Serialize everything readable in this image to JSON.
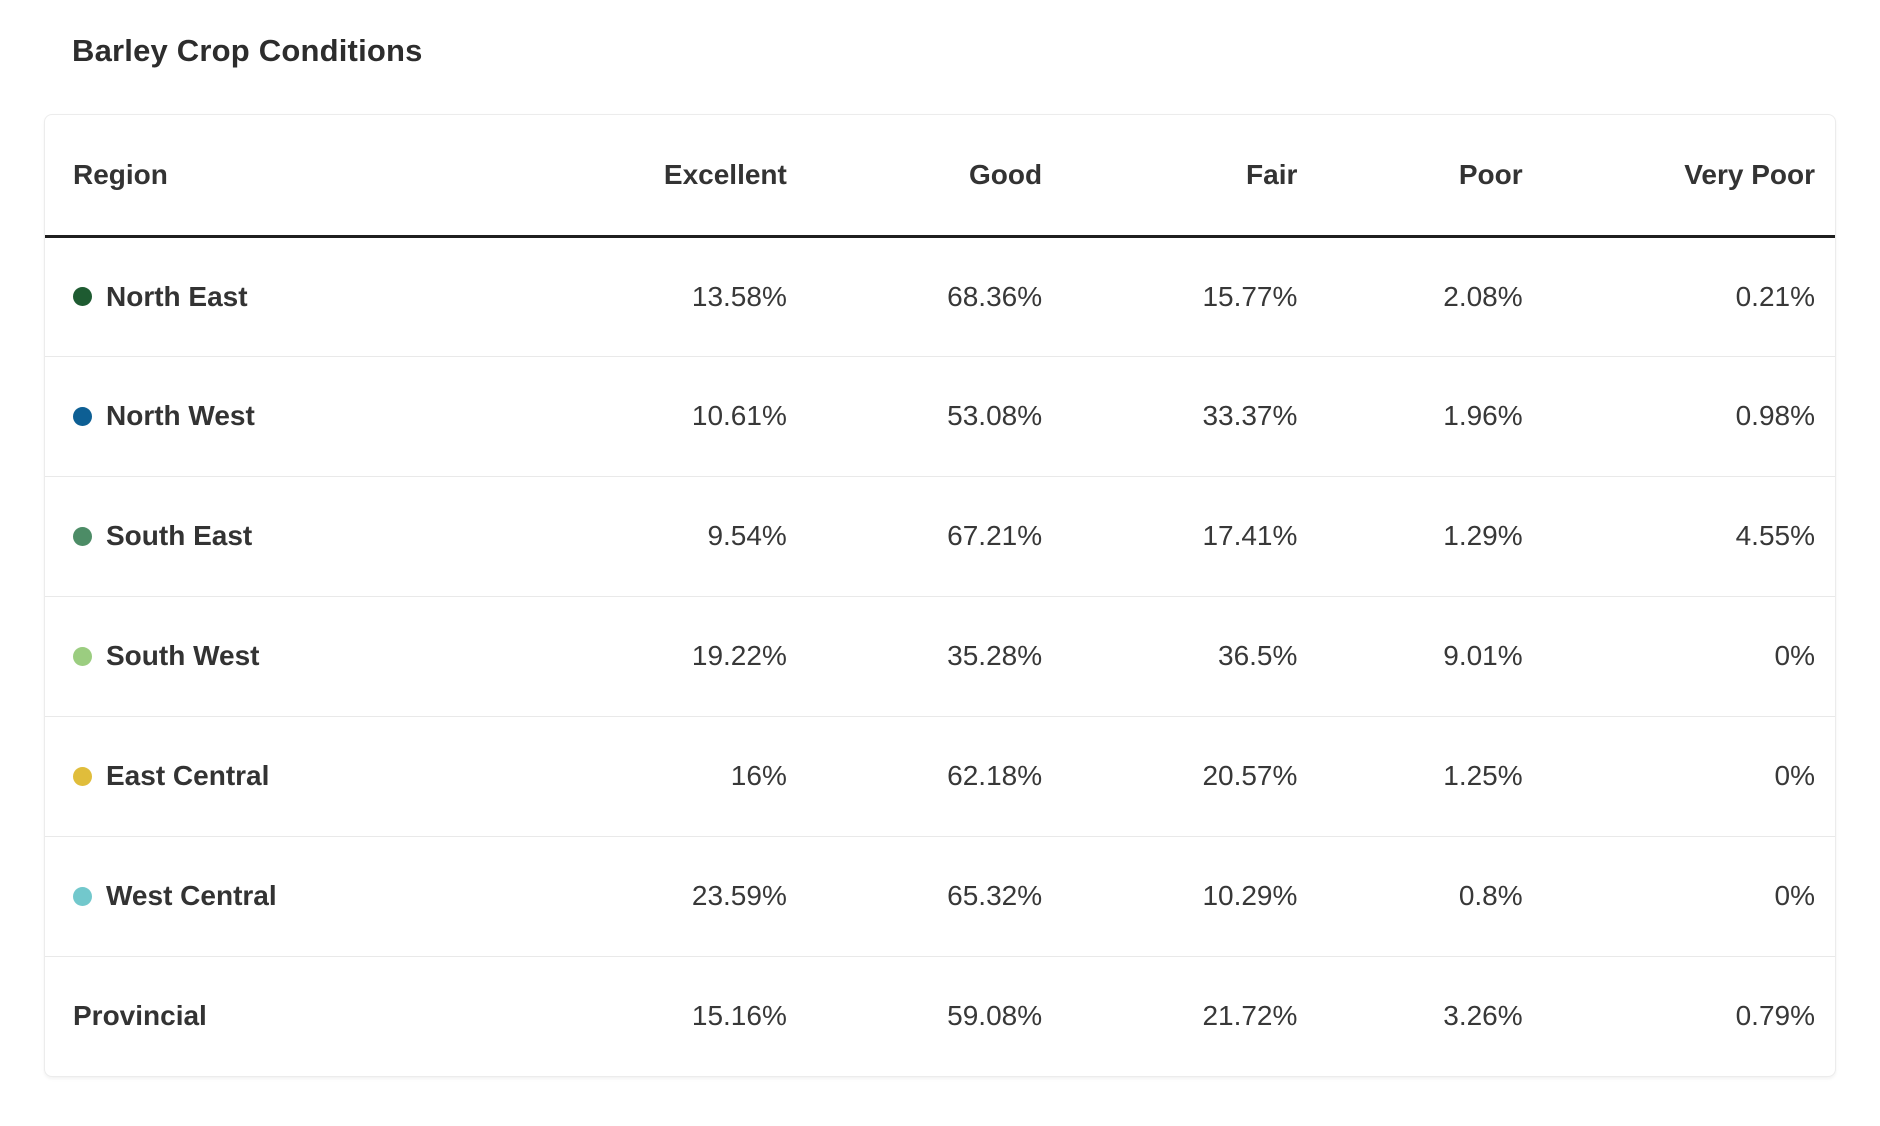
{
  "title": "Barley Crop Conditions",
  "table": {
    "columns": [
      "Region",
      "Excellent",
      "Good",
      "Fair",
      "Poor",
      "Very Poor"
    ],
    "rows": [
      {
        "region": "North East",
        "dot_color": "#1e5b31",
        "is_total": false,
        "values": [
          "13.58%",
          "68.36%",
          "15.77%",
          "2.08%",
          "0.21%"
        ]
      },
      {
        "region": "North West",
        "dot_color": "#0d5f94",
        "is_total": false,
        "values": [
          "10.61%",
          "53.08%",
          "33.37%",
          "1.96%",
          "0.98%"
        ]
      },
      {
        "region": "South East",
        "dot_color": "#4c8c66",
        "is_total": false,
        "values": [
          "9.54%",
          "67.21%",
          "17.41%",
          "1.29%",
          "4.55%"
        ]
      },
      {
        "region": "South West",
        "dot_color": "#9bcd80",
        "is_total": false,
        "values": [
          "19.22%",
          "35.28%",
          "36.5%",
          "9.01%",
          "0%"
        ]
      },
      {
        "region": "East Central",
        "dot_color": "#e0bd3b",
        "is_total": false,
        "values": [
          "16%",
          "62.18%",
          "20.57%",
          "1.25%",
          "0%"
        ]
      },
      {
        "region": "West Central",
        "dot_color": "#72c8cc",
        "is_total": false,
        "values": [
          "23.59%",
          "65.32%",
          "10.29%",
          "0.8%",
          "0%"
        ]
      },
      {
        "region": "Provincial",
        "dot_color": null,
        "is_total": true,
        "values": [
          "15.16%",
          "59.08%",
          "21.72%",
          "3.26%",
          "0.79%"
        ]
      }
    ]
  },
  "colors": {
    "title_text": "#2d2d2d",
    "header_text": "#333333",
    "cell_text": "#383838",
    "header_rule": "#1f1f1f",
    "row_divider": "#e9e9e9",
    "card_border": "#ececec",
    "background": "#ffffff"
  },
  "chart_data": {
    "type": "table",
    "title": "Barley Crop Conditions",
    "columns": [
      "Region",
      "Excellent",
      "Good",
      "Fair",
      "Poor",
      "Very Poor"
    ],
    "categories": [
      "North East",
      "North West",
      "South East",
      "South West",
      "East Central",
      "West Central",
      "Provincial"
    ],
    "series": [
      {
        "name": "Excellent",
        "values": [
          13.58,
          10.61,
          9.54,
          19.22,
          16,
          23.59,
          15.16
        ]
      },
      {
        "name": "Good",
        "values": [
          68.36,
          53.08,
          67.21,
          35.28,
          62.18,
          65.32,
          59.08
        ]
      },
      {
        "name": "Fair",
        "values": [
          15.77,
          33.37,
          17.41,
          36.5,
          20.57,
          10.29,
          21.72
        ]
      },
      {
        "name": "Poor",
        "values": [
          2.08,
          1.96,
          1.29,
          9.01,
          1.25,
          0.8,
          3.26
        ]
      },
      {
        "name": "Very Poor",
        "values": [
          0.21,
          0.98,
          4.55,
          0,
          0,
          0,
          0.79
        ]
      }
    ],
    "units": "percent",
    "row_colors": [
      "#1e5b31",
      "#0d5f94",
      "#4c8c66",
      "#9bcd80",
      "#e0bd3b",
      "#72c8cc",
      null
    ],
    "layout": {
      "value_alignment": "right",
      "header_rule": true,
      "row_dividers": true
    }
  }
}
